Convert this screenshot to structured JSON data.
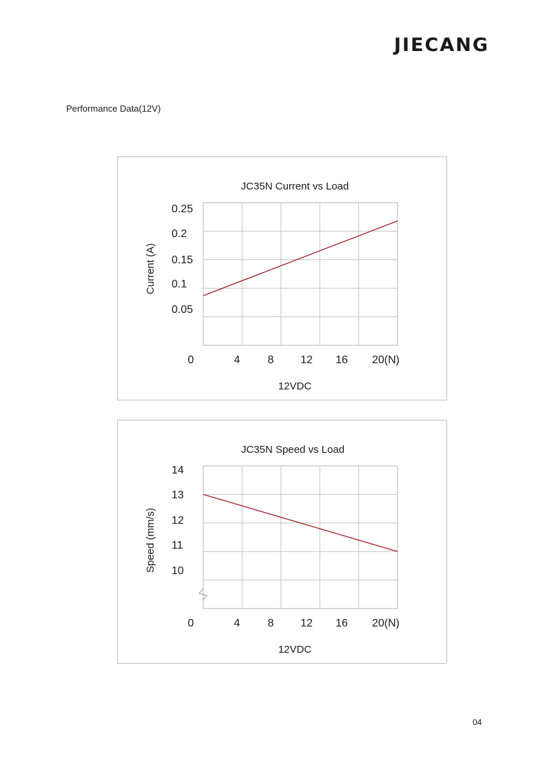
{
  "header": {
    "logo_text": "JIECANG"
  },
  "section": {
    "title": "Performance Data(12V)"
  },
  "page": {
    "number": "04"
  },
  "chart_data": [
    {
      "type": "line",
      "title": "JC35N Current vs Load",
      "xlabel": "12VDC",
      "ylabel": "Current (A)",
      "x_ticks": [
        "0",
        "4",
        "8",
        "12",
        "16",
        "20(N)"
      ],
      "y_ticks": [
        "0.25",
        "0.2",
        "0.15",
        "0.1",
        "0.05"
      ],
      "xlim": [
        0,
        20
      ],
      "ylim": [
        0,
        0.25
      ],
      "grid": true,
      "series": [
        {
          "x": [
            0,
            20
          ],
          "y": [
            0.087,
            0.218
          ],
          "color": "#a31f24"
        }
      ]
    },
    {
      "type": "line",
      "title": "JC35N Speed vs Load",
      "xlabel": "12VDC",
      "ylabel": "Speed (mm/s)",
      "x_ticks": [
        "0",
        "4",
        "8",
        "12",
        "16",
        "20(N)"
      ],
      "y_ticks": [
        "14",
        "13",
        "12",
        "11",
        "10"
      ],
      "xlim": [
        0,
        20
      ],
      "ylim": [
        9,
        14
      ],
      "axis_break": true,
      "grid": true,
      "series": [
        {
          "x": [
            0,
            20
          ],
          "y": [
            13.0,
            11.0
          ],
          "color": "#a31f24"
        }
      ]
    }
  ]
}
